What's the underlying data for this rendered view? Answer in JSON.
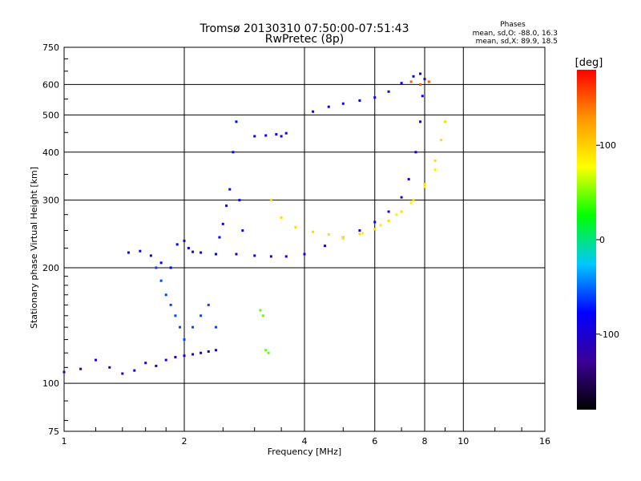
{
  "chart_data": {
    "type": "scatter",
    "title": "Tromsø 20130310 07:50:00-07:51:43",
    "subtitle": "RwPretec (8p)",
    "xlabel": "Frequency [MHz]",
    "ylabel": "Stationary phase Virtual Height [km]",
    "x_scale": "log",
    "y_scale": "log",
    "xlim": [
      1,
      16
    ],
    "ylim": [
      75,
      750
    ],
    "x_ticks": [
      1,
      2,
      4,
      6,
      8,
      10,
      16
    ],
    "y_ticks": [
      75,
      100,
      200,
      300,
      400,
      500,
      600,
      750
    ],
    "grid": true,
    "stats": {
      "heading": "Phases",
      "line_o": "mean, sd,O: -88.0, 16.3",
      "line_x": "mean, sd,X:  89.9, 18.5"
    },
    "colorbar": {
      "label": "[deg]",
      "range": [
        -180,
        180
      ],
      "ticks": [
        {
          "value": 100,
          "label": "100"
        },
        {
          "value": 0,
          "label": "0"
        },
        {
          "value": -100,
          "label": "-100"
        }
      ],
      "colors": [
        "#000000",
        "#3c0096",
        "#0000ff",
        "#00c8ff",
        "#00ff00",
        "#ffff00",
        "#ff9600",
        "#ff0000"
      ]
    },
    "series": [
      {
        "traces": [
          {
            "phase": -95,
            "pts": [
              [
                1.0,
                107
              ],
              [
                1.1,
                109
              ],
              [
                1.2,
                115
              ],
              [
                1.3,
                110
              ],
              [
                1.4,
                106
              ],
              [
                1.5,
                108
              ],
              [
                1.6,
                113
              ],
              [
                1.7,
                111
              ],
              [
                1.8,
                115
              ],
              [
                1.9,
                117
              ],
              [
                2.0,
                118
              ],
              [
                2.1,
                119
              ],
              [
                2.2,
                120
              ],
              [
                2.3,
                121
              ],
              [
                2.4,
                122
              ]
            ]
          },
          {
            "phase": -80,
            "pts": [
              [
                1.45,
                219
              ],
              [
                1.55,
                221
              ],
              [
                1.65,
                215
              ],
              [
                1.75,
                206
              ],
              [
                1.85,
                200
              ],
              [
                1.92,
                230
              ]
            ]
          },
          {
            "phase": -90,
            "pts": [
              [
                2.0,
                235
              ],
              [
                2.05,
                225
              ],
              [
                2.1,
                220
              ],
              [
                2.2,
                219
              ],
              [
                2.4,
                217
              ],
              [
                2.7,
                217
              ],
              [
                3.0,
                215
              ],
              [
                3.3,
                214
              ],
              [
                3.6,
                214
              ],
              [
                4.0,
                217
              ],
              [
                4.5,
                228
              ],
              [
                5.0,
                240
              ],
              [
                5.5,
                250
              ],
              [
                6.0,
                263
              ],
              [
                6.5,
                280
              ],
              [
                7.0,
                305
              ],
              [
                7.3,
                340
              ],
              [
                7.6,
                400
              ],
              [
                7.8,
                480
              ],
              [
                7.9,
                560
              ],
              [
                8.0,
                620
              ]
            ]
          },
          {
            "phase": -75,
            "pts": [
              [
                2.45,
                240
              ],
              [
                2.5,
                260
              ],
              [
                2.55,
                290
              ],
              [
                2.6,
                320
              ],
              [
                2.65,
                400
              ],
              [
                2.7,
                480
              ],
              [
                2.75,
                300
              ],
              [
                2.8,
                250
              ]
            ]
          },
          {
            "phase": -90,
            "pts": [
              [
                3.0,
                440
              ],
              [
                3.2,
                442
              ],
              [
                3.4,
                445
              ],
              [
                3.5,
                440
              ],
              [
                3.6,
                448
              ]
            ]
          },
          {
            "phase": -85,
            "pts": [
              [
                4.2,
                510
              ],
              [
                4.6,
                525
              ],
              [
                5.0,
                535
              ],
              [
                5.5,
                545
              ],
              [
                6.0,
                555
              ],
              [
                6.5,
                575
              ],
              [
                7.0,
                605
              ],
              [
                7.5,
                630
              ],
              [
                7.8,
                640
              ]
            ]
          },
          {
            "phase": 95,
            "pts": [
              [
                3.3,
                300
              ],
              [
                3.5,
                270
              ],
              [
                3.8,
                255
              ],
              [
                4.2,
                248
              ],
              [
                4.6,
                244
              ],
              [
                5.0,
                240
              ],
              [
                5.5,
                245
              ],
              [
                6.0,
                252
              ],
              [
                6.5,
                265
              ],
              [
                7.0,
                280
              ],
              [
                7.5,
                300
              ],
              [
                8.0,
                330
              ],
              [
                8.5,
                380
              ],
              [
                8.8,
                430
              ],
              [
                9.0,
                480
              ]
            ]
          },
          {
            "phase": 85,
            "pts": [
              [
                5.0,
                238
              ],
              [
                5.6,
                246
              ],
              [
                6.2,
                258
              ],
              [
                6.8,
                275
              ],
              [
                7.4,
                295
              ],
              [
                8.0,
                325
              ],
              [
                8.5,
                360
              ]
            ]
          },
          {
            "phase": -60,
            "pts": [
              [
                1.7,
                200
              ],
              [
                1.75,
                185
              ],
              [
                1.8,
                170
              ],
              [
                1.85,
                160
              ],
              [
                1.9,
                150
              ],
              [
                1.95,
                140
              ],
              [
                2.0,
                130
              ],
              [
                2.1,
                140
              ],
              [
                2.2,
                150
              ],
              [
                2.3,
                160
              ],
              [
                2.4,
                140
              ]
            ]
          },
          {
            "phase": 45,
            "pts": [
              [
                3.1,
                155
              ],
              [
                3.15,
                150
              ],
              [
                3.2,
                122
              ],
              [
                3.25,
                120
              ]
            ]
          },
          {
            "phase": 150,
            "pts": [
              [
                7.4,
                610
              ],
              [
                7.8,
                600
              ],
              [
                8.2,
                610
              ]
            ]
          }
        ]
      }
    ]
  }
}
